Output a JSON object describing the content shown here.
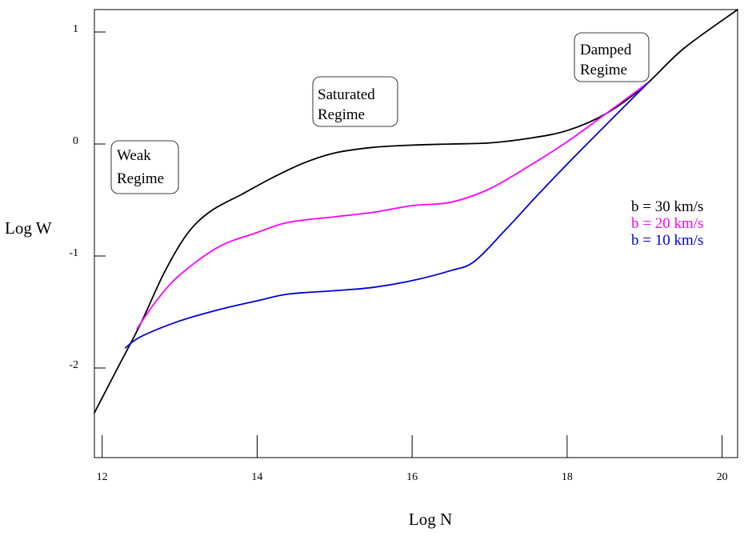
{
  "chart_data": {
    "type": "line",
    "xlabel": "Log N",
    "ylabel": "Log W",
    "xlim": [
      11.9,
      20.2
    ],
    "ylim": [
      -2.8,
      1.2
    ],
    "x_ticks": [
      "12",
      "14",
      "16",
      "18",
      "20"
    ],
    "y_ticks": [
      "1",
      "0",
      "-1",
      "-2"
    ],
    "series": [
      {
        "name": "b = 30 km/s",
        "color": "#000000",
        "points": [
          [
            11.9,
            -2.4
          ],
          [
            12.2,
            -2.0
          ],
          [
            12.5,
            -1.6
          ],
          [
            12.8,
            -1.15
          ],
          [
            13.1,
            -0.8
          ],
          [
            13.4,
            -0.6
          ],
          [
            13.8,
            -0.45
          ],
          [
            14.2,
            -0.3
          ],
          [
            14.6,
            -0.17
          ],
          [
            15.0,
            -0.08
          ],
          [
            15.5,
            -0.03
          ],
          [
            16.0,
            -0.01
          ],
          [
            16.5,
            0.0
          ],
          [
            17.0,
            0.01
          ],
          [
            17.5,
            0.05
          ],
          [
            18.0,
            0.12
          ],
          [
            18.5,
            0.27
          ],
          [
            19.0,
            0.52
          ],
          [
            19.5,
            0.85
          ],
          [
            20.2,
            1.2
          ]
        ]
      },
      {
        "name": "b = 20 km/s",
        "color": "#ff00ff",
        "points": [
          [
            12.45,
            -1.65
          ],
          [
            12.7,
            -1.4
          ],
          [
            13.0,
            -1.17
          ],
          [
            13.5,
            -0.92
          ],
          [
            14.0,
            -0.79
          ],
          [
            14.4,
            -0.7
          ],
          [
            15.0,
            -0.65
          ],
          [
            15.5,
            -0.61
          ],
          [
            16.0,
            -0.55
          ],
          [
            16.5,
            -0.52
          ],
          [
            17.0,
            -0.4
          ],
          [
            17.5,
            -0.2
          ],
          [
            18.0,
            0.02
          ],
          [
            18.5,
            0.27
          ],
          [
            19.05,
            0.55
          ]
        ]
      },
      {
        "name": "b = 10 km/s",
        "color": "#0000dd",
        "points": [
          [
            12.3,
            -1.82
          ],
          [
            12.5,
            -1.72
          ],
          [
            13.0,
            -1.58
          ],
          [
            13.5,
            -1.48
          ],
          [
            14.0,
            -1.4
          ],
          [
            14.4,
            -1.34
          ],
          [
            15.0,
            -1.31
          ],
          [
            15.5,
            -1.28
          ],
          [
            16.0,
            -1.22
          ],
          [
            16.5,
            -1.13
          ],
          [
            16.8,
            -1.05
          ],
          [
            17.2,
            -0.77
          ],
          [
            17.6,
            -0.47
          ],
          [
            18.0,
            -0.18
          ],
          [
            18.5,
            0.17
          ],
          [
            19.05,
            0.55
          ]
        ]
      }
    ],
    "annotations": [
      {
        "lines": [
          "Weak",
          "Regime"
        ]
      },
      {
        "lines": [
          "Saturated",
          "Regime"
        ]
      },
      {
        "lines": [
          "Damped",
          "Regime"
        ]
      }
    ],
    "legend": {
      "placement": "right",
      "entries": [
        {
          "text": "b = 30 km/s",
          "color": "#000000"
        },
        {
          "text": "b = 20 km/s",
          "color": "#ff00ff"
        },
        {
          "text": "b = 10 km/s",
          "color": "#0000dd"
        }
      ]
    }
  }
}
